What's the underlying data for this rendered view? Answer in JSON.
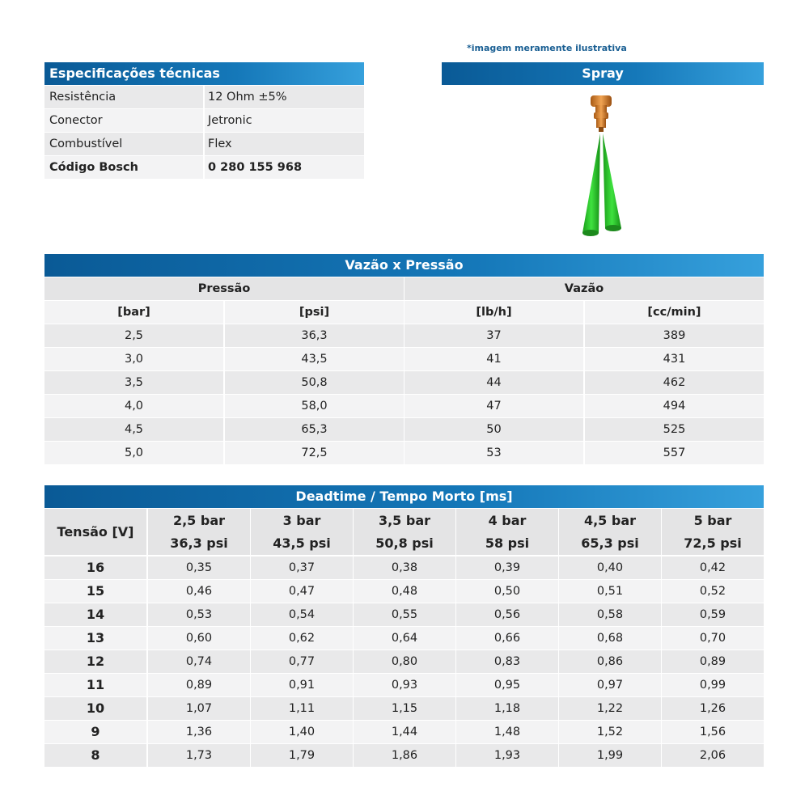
{
  "specs": {
    "title": "Especificações técnicas",
    "rows": [
      {
        "label": "Resistência",
        "value": "12 Ohm ±5%"
      },
      {
        "label": "Conector",
        "value": "Jetronic"
      },
      {
        "label": "Combustível",
        "value": "Flex"
      },
      {
        "label": "Código Bosch",
        "value": "0 280 155 968"
      }
    ]
  },
  "spray": {
    "note": "*imagem meramente ilustrativa",
    "title": "Spray",
    "colors": {
      "injector": "#d9822b",
      "spray": "#2fcf2f"
    }
  },
  "flow": {
    "title": "Vazão x Pressão",
    "group_headers": [
      "Pressão",
      "Vazão"
    ],
    "unit_headers": [
      "[bar]",
      "[psi]",
      "[lb/h]",
      "[cc/min]"
    ],
    "rows": [
      [
        "2,5",
        "36,3",
        "37",
        "389"
      ],
      [
        "3,0",
        "43,5",
        "41",
        "431"
      ],
      [
        "3,5",
        "50,8",
        "44",
        "462"
      ],
      [
        "4,0",
        "58,0",
        "47",
        "494"
      ],
      [
        "4,5",
        "65,3",
        "50",
        "525"
      ],
      [
        "5,0",
        "72,5",
        "53",
        "557"
      ]
    ]
  },
  "deadtime": {
    "title": "Deadtime / Tempo Morto [ms]",
    "voltage_header": "Tensão [V]",
    "columns": [
      {
        "bar": "2,5 bar",
        "psi": "36,3 psi"
      },
      {
        "bar": "3 bar",
        "psi": "43,5 psi"
      },
      {
        "bar": "3,5 bar",
        "psi": "50,8 psi"
      },
      {
        "bar": "4 bar",
        "psi": "58 psi"
      },
      {
        "bar": "4,5 bar",
        "psi": "65,3 psi"
      },
      {
        "bar": "5 bar",
        "psi": "72,5 psi"
      }
    ],
    "rows": [
      {
        "v": "16",
        "vals": [
          "0,35",
          "0,37",
          "0,38",
          "0,39",
          "0,40",
          "0,42"
        ]
      },
      {
        "v": "15",
        "vals": [
          "0,46",
          "0,47",
          "0,48",
          "0,50",
          "0,51",
          "0,52"
        ]
      },
      {
        "v": "14",
        "vals": [
          "0,53",
          "0,54",
          "0,55",
          "0,56",
          "0,58",
          "0,59"
        ]
      },
      {
        "v": "13",
        "vals": [
          "0,60",
          "0,62",
          "0,64",
          "0,66",
          "0,68",
          "0,70"
        ]
      },
      {
        "v": "12",
        "vals": [
          "0,74",
          "0,77",
          "0,80",
          "0,83",
          "0,86",
          "0,89"
        ]
      },
      {
        "v": "11",
        "vals": [
          "0,89",
          "0,91",
          "0,93",
          "0,95",
          "0,97",
          "0,99"
        ]
      },
      {
        "v": "10",
        "vals": [
          "1,07",
          "1,11",
          "1,15",
          "1,18",
          "1,22",
          "1,26"
        ]
      },
      {
        "v": "9",
        "vals": [
          "1,36",
          "1,40",
          "1,44",
          "1,48",
          "1,52",
          "1,56"
        ]
      },
      {
        "v": "8",
        "vals": [
          "1,73",
          "1,79",
          "1,86",
          "1,93",
          "1,99",
          "2,06"
        ]
      }
    ]
  }
}
